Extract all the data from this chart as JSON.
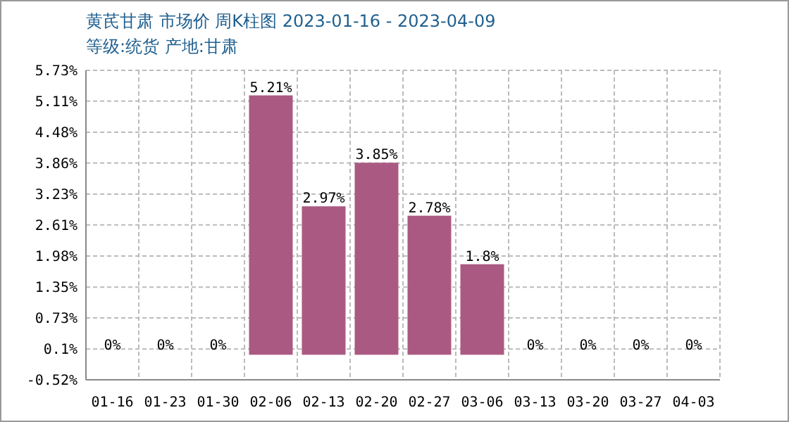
{
  "chart_data": {
    "type": "bar",
    "title": "黄芪甘肃 市场价 周K柱图 2023-01-16 - 2023-04-09",
    "subtitle": "等级:统货 产地:甘肃",
    "categories": [
      "01-16",
      "01-23",
      "01-30",
      "02-06",
      "02-13",
      "02-20",
      "02-27",
      "03-06",
      "03-13",
      "03-20",
      "03-27",
      "04-03"
    ],
    "values": [
      0,
      0,
      0,
      5.21,
      2.97,
      3.85,
      2.78,
      1.8,
      0,
      0,
      0,
      0
    ],
    "value_labels": [
      "0%",
      "0%",
      "0%",
      "5.21%",
      "2.97%",
      "3.85%",
      "2.78%",
      "1.8%",
      "0%",
      "0%",
      "0%",
      "0%"
    ],
    "color": "#aa5a82",
    "ylim": [
      -0.52,
      5.73
    ],
    "yticks": [
      {
        "value": -0.52,
        "label": "-0.52%"
      },
      {
        "value": 0.1,
        "label": "0.1%"
      },
      {
        "value": 0.73,
        "label": "0.73%"
      },
      {
        "value": 1.35,
        "label": "1.35%"
      },
      {
        "value": 1.98,
        "label": "1.98%"
      },
      {
        "value": 2.61,
        "label": "2.61%"
      },
      {
        "value": 3.23,
        "label": "3.23%"
      },
      {
        "value": 3.86,
        "label": "3.86%"
      },
      {
        "value": 4.48,
        "label": "4.48%"
      },
      {
        "value": 5.11,
        "label": "5.11%"
      },
      {
        "value": 5.73,
        "label": "5.73%"
      }
    ],
    "grid": true
  }
}
